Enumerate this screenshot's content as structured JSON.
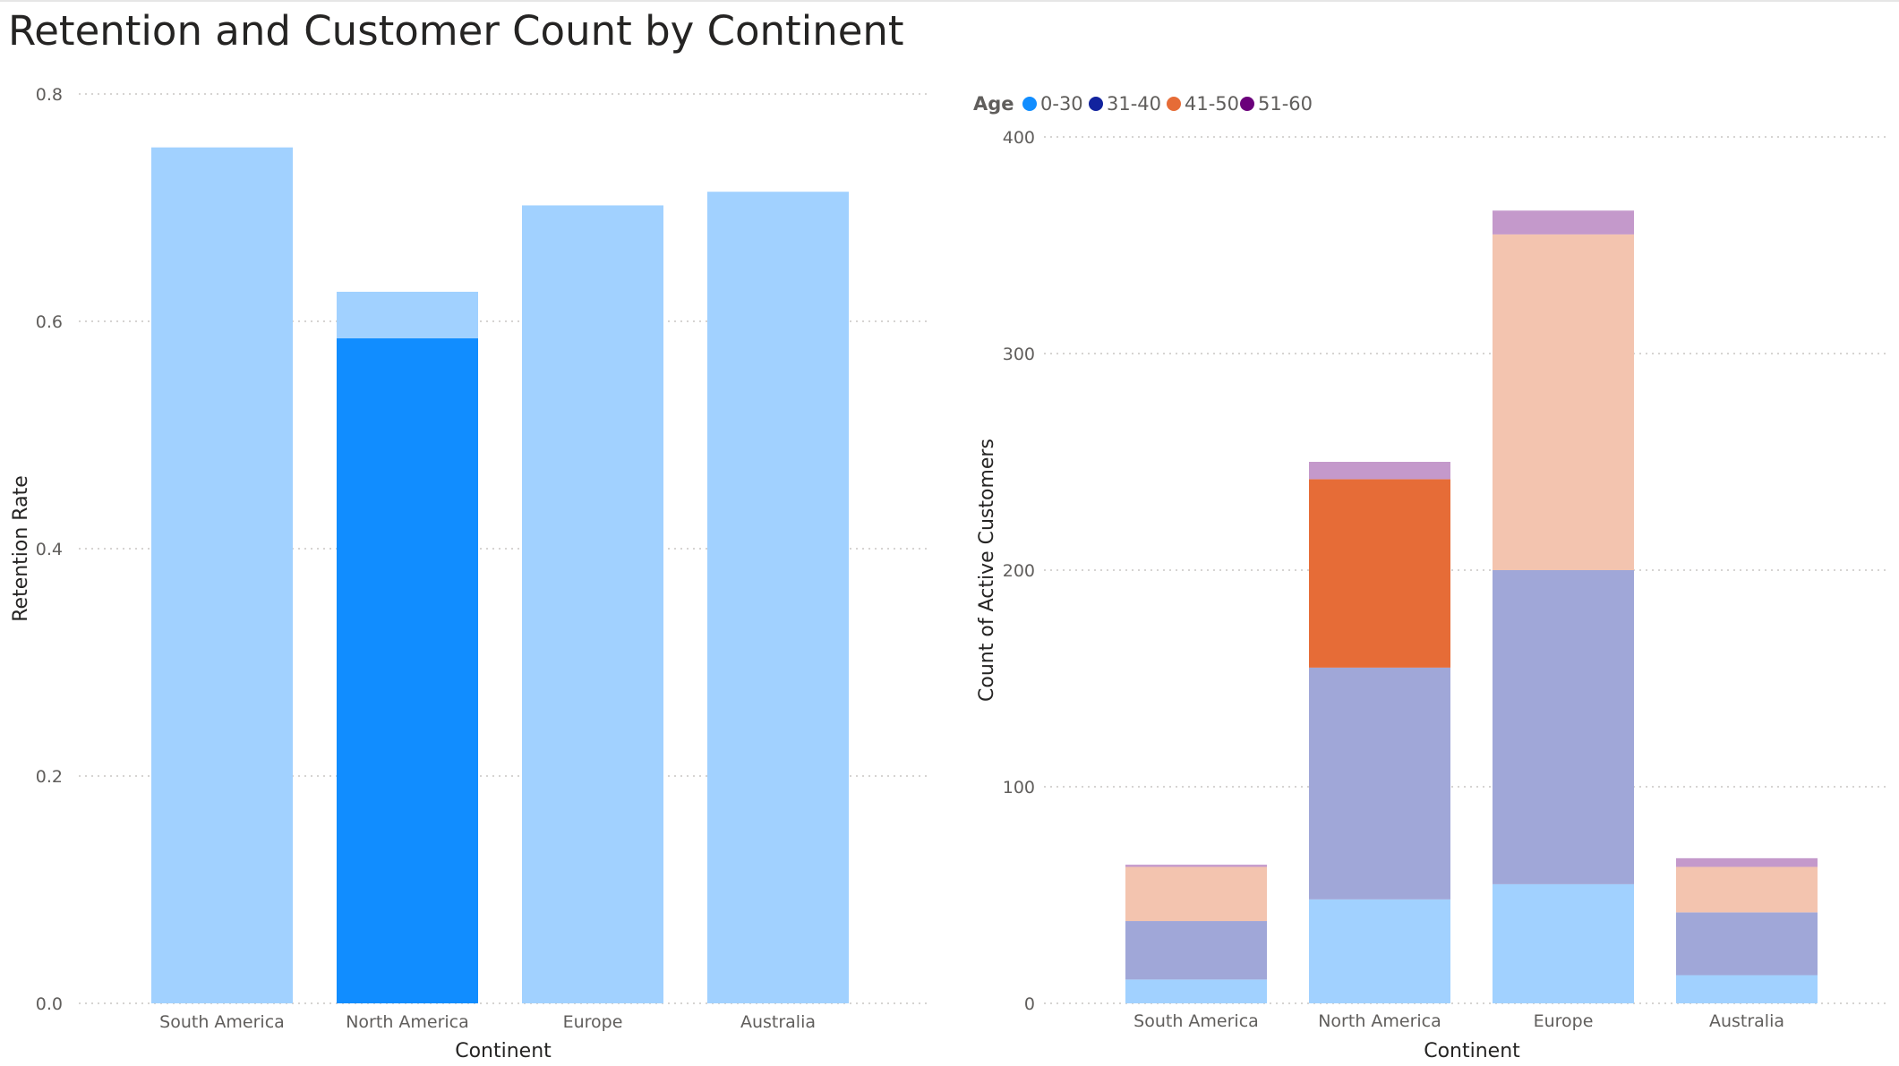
{
  "title": "Retention and Customer Count by Continent",
  "chart_data": [
    {
      "type": "bar",
      "categories": [
        "South America",
        "North America",
        "Europe",
        "Australia"
      ],
      "total_values": [
        0.753,
        0.626,
        0.702,
        0.714
      ],
      "highlighted_values": [
        null,
        0.585,
        null,
        null
      ],
      "highlighted_category": "North America",
      "xlabel": "Continent",
      "ylabel": "Retention Rate",
      "ylim": [
        0,
        0.8
      ],
      "yticks": [
        "0.0",
        "0.2",
        "0.4",
        "0.6",
        "0.8"
      ],
      "ytick_values": [
        0,
        0.2,
        0.4,
        0.6,
        0.8
      ],
      "colors": {
        "dimmed": "#a1d1ff",
        "highlight": "#118dff"
      },
      "grid": true
    },
    {
      "type": "bar",
      "stacked": true,
      "categories": [
        "South America",
        "North America",
        "Europe",
        "Australia"
      ],
      "legend_title": "Age",
      "legend_position": "top-left",
      "series": [
        {
          "name": "0-30",
          "values": [
            11,
            48,
            55,
            13
          ],
          "color": "#118dff",
          "dimmed_color": "#a1d1ff"
        },
        {
          "name": "31-40",
          "values": [
            27,
            107,
            145,
            29
          ],
          "color": "#12239e",
          "dimmed_color": "#a0a7d8"
        },
        {
          "name": "41-50",
          "values": [
            25,
            87,
            155,
            21
          ],
          "color": "#e66c37",
          "dimmed_color": "#f3c4af"
        },
        {
          "name": "51-60",
          "values": [
            1,
            8,
            11,
            4
          ],
          "color": "#6b007b",
          "dimmed_color": "#c499cb"
        }
      ],
      "highlighted_segment": {
        "category": "North America",
        "series": "41-50"
      },
      "xlabel": "Continent",
      "ylabel": "Count of Active Customers",
      "ylim": [
        0,
        400
      ],
      "yticks": [
        "0",
        "100",
        "200",
        "300",
        "400"
      ],
      "ytick_values": [
        0,
        100,
        200,
        300,
        400
      ],
      "grid": true
    }
  ]
}
